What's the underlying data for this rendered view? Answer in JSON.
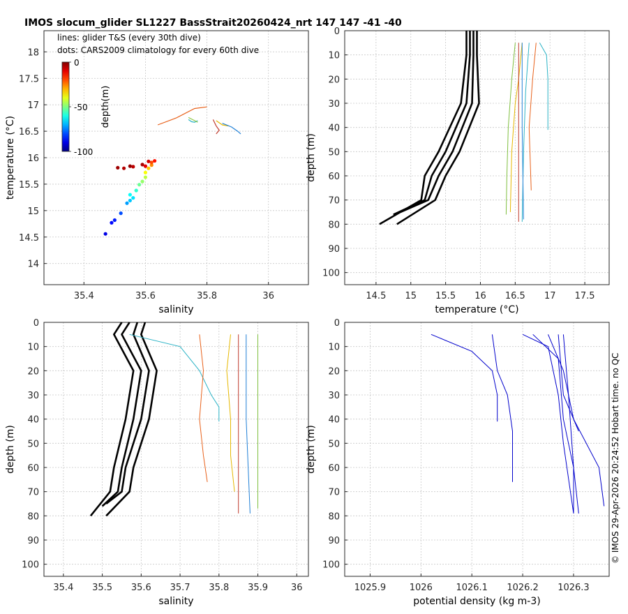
{
  "figure": {
    "title": "IMOS slocum_glider SL1227 BassStrait20260424_nrt 147  147  -41  -40",
    "credit": "© IMOS 29-Apr-2026 20:24:52 Hobart time. no QC"
  },
  "colorbar": {
    "label": "depth(m)",
    "ticks": [
      0,
      -50,
      -100
    ],
    "tick_labels": [
      "0",
      "-50",
      "-100"
    ]
  },
  "chart_data": [
    {
      "id": "ts",
      "type": "scatter",
      "xlabel": "salinity",
      "ylabel": "temperature (°C)",
      "xlim": [
        35.27,
        36.13
      ],
      "ylim": [
        13.6,
        18.4
      ],
      "xticks": [
        35.4,
        35.6,
        35.8,
        36
      ],
      "xtick_labels": [
        "35.4",
        "35.6",
        "35.8",
        "36"
      ],
      "yticks": [
        14,
        14.5,
        15,
        15.5,
        16,
        16.5,
        17,
        17.5,
        18
      ],
      "ytick_labels": [
        "14",
        "14.5",
        "15",
        "15.5",
        "16",
        "16.5",
        "17",
        "17.5",
        "18"
      ],
      "legend": [
        "lines: glider T&S (every 30th dive)",
        "dots: CARS2009 climatology for every 60th dive"
      ],
      "lines": [
        {
          "color": "#e8611a",
          "points": [
            [
              35.64,
              16.62
            ],
            [
              35.7,
              16.75
            ],
            [
              35.76,
              16.93
            ],
            [
              35.8,
              16.96
            ]
          ]
        },
        {
          "color": "#2bb3c6",
          "points": [
            [
              35.74,
              16.72
            ],
            [
              35.75,
              16.68
            ],
            [
              35.76,
              16.67
            ],
            [
              35.77,
              16.7
            ]
          ]
        },
        {
          "color": "#8cc63f",
          "points": [
            [
              35.74,
              16.76
            ],
            [
              35.76,
              16.7
            ],
            [
              35.77,
              16.67
            ]
          ]
        },
        {
          "color": "#c0392b",
          "points": [
            [
              35.82,
              16.72
            ],
            [
              35.83,
              16.6
            ],
            [
              35.84,
              16.52
            ],
            [
              35.83,
              16.45
            ]
          ]
        },
        {
          "color": "#e6b800",
          "points": [
            [
              35.83,
              16.7
            ],
            [
              35.85,
              16.62
            ],
            [
              35.87,
              16.6
            ]
          ]
        },
        {
          "color": "#1f7fd6",
          "points": [
            [
              35.85,
              16.65
            ],
            [
              35.88,
              16.58
            ],
            [
              35.9,
              16.5
            ],
            [
              35.91,
              16.45
            ]
          ]
        }
      ],
      "dots": [
        {
          "s": 35.47,
          "t": 14.56,
          "d": -90
        },
        {
          "s": 35.49,
          "t": 14.77,
          "d": -87
        },
        {
          "s": 35.5,
          "t": 14.82,
          "d": -85
        },
        {
          "s": 35.52,
          "t": 14.95,
          "d": -80
        },
        {
          "s": 35.54,
          "t": 15.14,
          "d": -72
        },
        {
          "s": 35.55,
          "t": 15.19,
          "d": -68
        },
        {
          "s": 35.56,
          "t": 15.24,
          "d": -65
        },
        {
          "s": 35.55,
          "t": 15.3,
          "d": -62
        },
        {
          "s": 35.57,
          "t": 15.38,
          "d": -58
        },
        {
          "s": 35.58,
          "t": 15.49,
          "d": -52
        },
        {
          "s": 35.59,
          "t": 15.55,
          "d": -48
        },
        {
          "s": 35.6,
          "t": 15.63,
          "d": -44
        },
        {
          "s": 35.6,
          "t": 15.72,
          "d": -38
        },
        {
          "s": 35.61,
          "t": 15.8,
          "d": -32
        },
        {
          "s": 35.62,
          "t": 15.86,
          "d": -26
        },
        {
          "s": 35.62,
          "t": 15.91,
          "d": -20
        },
        {
          "s": 35.63,
          "t": 15.94,
          "d": -14
        },
        {
          "s": 35.51,
          "t": 15.81,
          "d": -3
        },
        {
          "s": 35.53,
          "t": 15.8,
          "d": -5
        },
        {
          "s": 35.55,
          "t": 15.84,
          "d": -2
        },
        {
          "s": 35.56,
          "t": 15.83,
          "d": -6
        },
        {
          "s": 35.59,
          "t": 15.87,
          "d": -4
        },
        {
          "s": 35.61,
          "t": 15.93,
          "d": -8
        },
        {
          "s": 35.6,
          "t": 15.84,
          "d": -10
        }
      ]
    },
    {
      "id": "temp_depth",
      "type": "line",
      "xlabel": "temperature (°C)",
      "ylabel": "depth (m)",
      "xlim": [
        14.05,
        17.85
      ],
      "ylim": [
        105,
        0
      ],
      "xticks": [
        14.5,
        15,
        15.5,
        16,
        16.5,
        17,
        17.5
      ],
      "xtick_labels": [
        "14.5",
        "15",
        "15.5",
        "16",
        "16.5",
        "17",
        "17.5"
      ],
      "yticks": [
        0,
        10,
        20,
        30,
        40,
        50,
        60,
        70,
        80,
        90,
        100
      ],
      "ytick_labels": [
        "0",
        "10",
        "20",
        "30",
        "40",
        "50",
        "60",
        "70",
        "80",
        "90",
        "100"
      ],
      "clim_series": [
        {
          "color": "#000000",
          "points": [
            [
              15.8,
              0
            ],
            [
              15.8,
              10
            ],
            [
              15.72,
              30
            ],
            [
              15.4,
              50
            ],
            [
              15.2,
              60
            ],
            [
              15.15,
              70
            ],
            [
              14.55,
              80
            ]
          ]
        },
        {
          "color": "#000000",
          "points": [
            [
              15.85,
              0
            ],
            [
              15.85,
              10
            ],
            [
              15.8,
              30
            ],
            [
              15.5,
              50
            ],
            [
              15.3,
              60
            ],
            [
              15.2,
              70
            ],
            [
              14.75,
              76
            ]
          ]
        },
        {
          "color": "#000000",
          "points": [
            [
              15.9,
              0
            ],
            [
              15.9,
              10
            ],
            [
              15.88,
              30
            ],
            [
              15.6,
              50
            ],
            [
              15.4,
              60
            ],
            [
              15.25,
              70
            ],
            [
              14.85,
              75
            ]
          ]
        },
        {
          "color": "#000000",
          "points": [
            [
              15.95,
              0
            ],
            [
              15.95,
              10
            ],
            [
              15.98,
              30
            ],
            [
              15.7,
              50
            ],
            [
              15.5,
              60
            ],
            [
              15.35,
              70
            ],
            [
              14.8,
              80
            ]
          ]
        }
      ],
      "series": [
        {
          "color": "#7fbf3f",
          "points": [
            [
              16.5,
              5
            ],
            [
              16.45,
              20
            ],
            [
              16.4,
              40
            ],
            [
              16.38,
              60
            ],
            [
              16.37,
              76
            ]
          ]
        },
        {
          "color": "#e6b800",
          "points": [
            [
              16.6,
              5
            ],
            [
              16.55,
              20
            ],
            [
              16.5,
              30
            ],
            [
              16.45,
              50
            ],
            [
              16.43,
              75
            ]
          ]
        },
        {
          "color": "#2bb3c6",
          "points": [
            [
              16.7,
              5
            ],
            [
              16.65,
              25
            ],
            [
              16.62,
              50
            ],
            [
              16.6,
              79
            ]
          ]
        },
        {
          "color": "#c0392b",
          "points": [
            [
              16.55,
              5
            ],
            [
              16.55,
              40
            ],
            [
              16.55,
              79
            ]
          ]
        },
        {
          "color": "#1f7fd6",
          "points": [
            [
              16.6,
              5
            ],
            [
              16.6,
              40
            ],
            [
              16.62,
              78
            ]
          ]
        },
        {
          "color": "#e8611a",
          "points": [
            [
              16.8,
              5
            ],
            [
              16.75,
              20
            ],
            [
              16.7,
              40
            ],
            [
              16.73,
              66
            ]
          ]
        },
        {
          "color": "#2bb3c6",
          "points": [
            [
              16.85,
              5
            ],
            [
              16.95,
              10
            ],
            [
              16.97,
              20
            ],
            [
              16.97,
              41
            ]
          ]
        }
      ]
    },
    {
      "id": "sal_depth",
      "type": "line",
      "xlabel": "salinity",
      "ylabel": "depth (m)",
      "xlim": [
        35.35,
        36.03
      ],
      "ylim": [
        105,
        0
      ],
      "xticks": [
        35.4,
        35.5,
        35.6,
        35.7,
        35.8,
        35.9,
        36
      ],
      "xtick_labels": [
        "35.4",
        "35.5",
        "35.6",
        "35.7",
        "35.8",
        "35.9",
        "36"
      ],
      "yticks": [
        0,
        10,
        20,
        30,
        40,
        50,
        60,
        70,
        80,
        90,
        100
      ],
      "ytick_labels": [
        "0",
        "10",
        "20",
        "30",
        "40",
        "50",
        "60",
        "70",
        "80",
        "90",
        "100"
      ],
      "clim_series": [
        {
          "color": "#000000",
          "points": [
            [
              35.55,
              0
            ],
            [
              35.53,
              5
            ],
            [
              35.58,
              20
            ],
            [
              35.56,
              40
            ],
            [
              35.53,
              60
            ],
            [
              35.52,
              70
            ],
            [
              35.47,
              80
            ]
          ]
        },
        {
          "color": "#000000",
          "points": [
            [
              35.57,
              0
            ],
            [
              35.55,
              5
            ],
            [
              35.6,
              20
            ],
            [
              35.58,
              40
            ],
            [
              35.55,
              60
            ],
            [
              35.54,
              70
            ],
            [
              35.5,
              76
            ]
          ]
        },
        {
          "color": "#000000",
          "points": [
            [
              35.59,
              0
            ],
            [
              35.58,
              5
            ],
            [
              35.62,
              20
            ],
            [
              35.6,
              40
            ],
            [
              35.56,
              60
            ],
            [
              35.55,
              70
            ],
            [
              35.51,
              75
            ]
          ]
        },
        {
          "color": "#000000",
          "points": [
            [
              35.61,
              0
            ],
            [
              35.6,
              5
            ],
            [
              35.64,
              20
            ],
            [
              35.62,
              40
            ],
            [
              35.58,
              60
            ],
            [
              35.57,
              70
            ],
            [
              35.51,
              80
            ]
          ]
        }
      ],
      "series": [
        {
          "color": "#2bb3c6",
          "points": [
            [
              35.57,
              5
            ],
            [
              35.7,
              10
            ],
            [
              35.75,
              20
            ],
            [
              35.78,
              30
            ],
            [
              35.8,
              35
            ],
            [
              35.8,
              41
            ]
          ]
        },
        {
          "color": "#e8611a",
          "points": [
            [
              35.75,
              5
            ],
            [
              35.76,
              20
            ],
            [
              35.75,
              40
            ],
            [
              35.76,
              55
            ],
            [
              35.77,
              66
            ]
          ]
        },
        {
          "color": "#e6b800",
          "points": [
            [
              35.83,
              5
            ],
            [
              35.82,
              20
            ],
            [
              35.83,
              40
            ],
            [
              35.83,
              55
            ],
            [
              35.84,
              70
            ]
          ]
        },
        {
          "color": "#c0392b",
          "points": [
            [
              35.85,
              5
            ],
            [
              35.85,
              40
            ],
            [
              35.85,
              79
            ]
          ]
        },
        {
          "color": "#1f7fd6",
          "points": [
            [
              35.87,
              5
            ],
            [
              35.87,
              40
            ],
            [
              35.88,
              79
            ]
          ]
        },
        {
          "color": "#7fbf3f",
          "points": [
            [
              35.9,
              5
            ],
            [
              35.9,
              40
            ],
            [
              35.9,
              68
            ],
            [
              35.9,
              77
            ]
          ]
        }
      ]
    },
    {
      "id": "dens_depth",
      "type": "line",
      "xlabel": "potential density (kg m-3)",
      "ylabel": "depth (m)",
      "xlim": [
        1025.85,
        1026.37
      ],
      "ylim": [
        105,
        0
      ],
      "xticks": [
        1025.9,
        1026,
        1026.1,
        1026.2,
        1026.3
      ],
      "xtick_labels": [
        "1025.9",
        "1026",
        "1026.1",
        "1026.2",
        "1026.3"
      ],
      "yticks": [
        0,
        10,
        20,
        30,
        40,
        50,
        60,
        70,
        80,
        90,
        100
      ],
      "ytick_labels": [
        "0",
        "10",
        "20",
        "30",
        "40",
        "50",
        "60",
        "70",
        "80",
        "90",
        "100"
      ],
      "series": [
        {
          "color": "#0000cc",
          "points": [
            [
              1026.02,
              5
            ],
            [
              1026.1,
              12
            ],
            [
              1026.14,
              20
            ],
            [
              1026.15,
              30
            ],
            [
              1026.15,
              41
            ]
          ]
        },
        {
          "color": "#0000cc",
          "points": [
            [
              1026.14,
              5
            ],
            [
              1026.15,
              20
            ],
            [
              1026.17,
              30
            ],
            [
              1026.18,
              45
            ],
            [
              1026.18,
              66
            ]
          ]
        },
        {
          "color": "#0000cc",
          "points": [
            [
              1026.2,
              5
            ],
            [
              1026.25,
              10
            ],
            [
              1026.27,
              30
            ],
            [
              1026.28,
              50
            ],
            [
              1026.3,
              79
            ]
          ]
        },
        {
          "color": "#0000cc",
          "points": [
            [
              1026.22,
              5
            ],
            [
              1026.27,
              15
            ],
            [
              1026.28,
              40
            ],
            [
              1026.3,
              60
            ],
            [
              1026.31,
              79
            ]
          ]
        },
        {
          "color": "#0000cc",
          "points": [
            [
              1026.25,
              5
            ],
            [
              1026.28,
              20
            ],
            [
              1026.3,
              40
            ],
            [
              1026.35,
              60
            ],
            [
              1026.36,
              76
            ]
          ]
        },
        {
          "color": "#0000cc",
          "points": [
            [
              1026.27,
              5
            ],
            [
              1026.28,
              30
            ],
            [
              1026.31,
              45
            ]
          ]
        },
        {
          "color": "#0000cc",
          "points": [
            [
              1026.28,
              5
            ],
            [
              1026.29,
              30
            ],
            [
              1026.3,
              60
            ],
            [
              1026.3,
              79
            ]
          ]
        }
      ]
    }
  ]
}
